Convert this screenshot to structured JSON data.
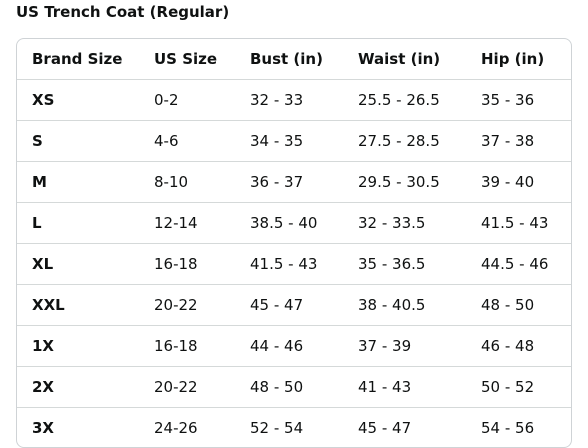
{
  "title": "US Trench Coat (Regular)",
  "headers": [
    "Brand Size",
    "US Size",
    "Bust (in)",
    "Waist (in)",
    "Hip (in)"
  ],
  "rows": [
    [
      "XS",
      "0-2",
      "32 - 33",
      "25.5 - 26.5",
      "35 - 36"
    ],
    [
      "S",
      "4-6",
      "34 - 35",
      "27.5 - 28.5",
      "37 - 38"
    ],
    [
      "M",
      "8-10",
      "36 - 37",
      "29.5 - 30.5",
      "39 - 40"
    ],
    [
      "L",
      "12-14",
      "38.5 - 40",
      "32 - 33.5",
      "41.5 - 43"
    ],
    [
      "XL",
      "16-18",
      "41.5 - 43",
      "35 - 36.5",
      "44.5 - 46"
    ],
    [
      "XXL",
      "20-22",
      "45 - 47",
      "38 - 40.5",
      "48 - 50"
    ],
    [
      "1X",
      "16-18",
      "44 - 46",
      "37 - 39",
      "46 - 48"
    ],
    [
      "2X",
      "20-22",
      "48 - 50",
      "41 - 43",
      "50 - 52"
    ],
    [
      "3X",
      "24-26",
      "52 - 54",
      "45 - 47",
      "54 - 56"
    ]
  ]
}
